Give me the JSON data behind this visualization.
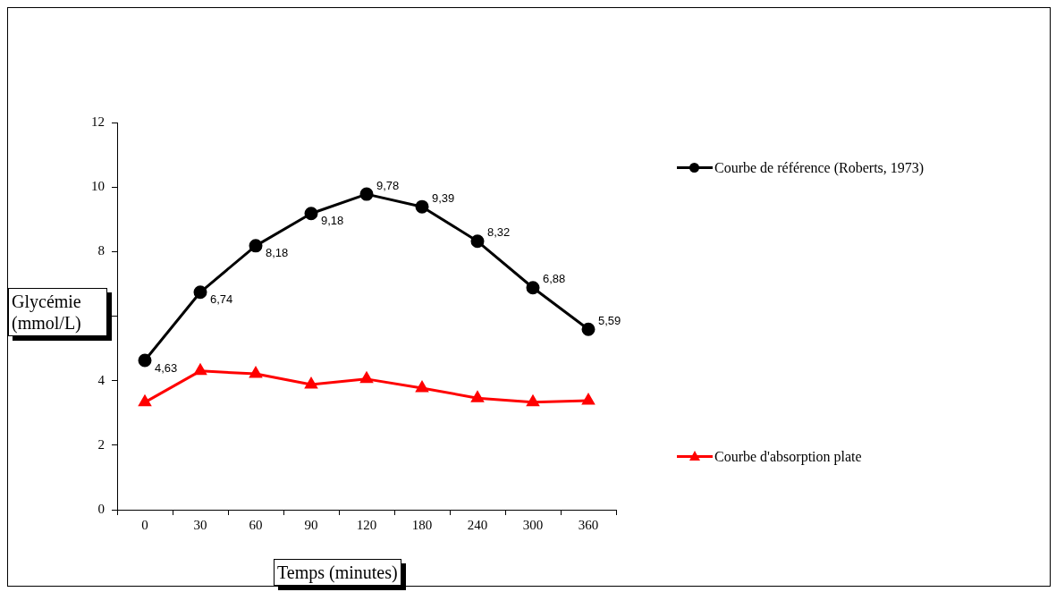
{
  "chart_data": {
    "type": "line",
    "xlabel": "Temps (minutes)",
    "ylabel": "Glycémie (mmol/L)",
    "categories": [
      "0",
      "30",
      "60",
      "90",
      "120",
      "180",
      "240",
      "300",
      "360"
    ],
    "series": [
      {
        "name": "Courbe de référence (Roberts, 1973)",
        "color": "#000000",
        "marker": "circle",
        "values": [
          4.63,
          6.74,
          8.18,
          9.18,
          9.78,
          9.39,
          8.32,
          6.88,
          5.59
        ],
        "value_labels": [
          "4,63",
          "6,74",
          "8,18",
          "9,18",
          "9,78",
          "9,39",
          "8,32",
          "6,88",
          "5,59"
        ]
      },
      {
        "name": "Courbe d'absorption plate",
        "color": "#ff0000",
        "marker": "triangle",
        "values": [
          3.33,
          4.3,
          4.21,
          3.88,
          4.05,
          3.77,
          3.46,
          3.33,
          3.38
        ]
      }
    ],
    "ylim": [
      0,
      12
    ],
    "yticks": [
      0,
      2,
      4,
      {
        "value": 6,
        "label": null
      },
      8,
      10,
      12
    ],
    "grid": false,
    "legend": "right",
    "line_style": "solid"
  }
}
